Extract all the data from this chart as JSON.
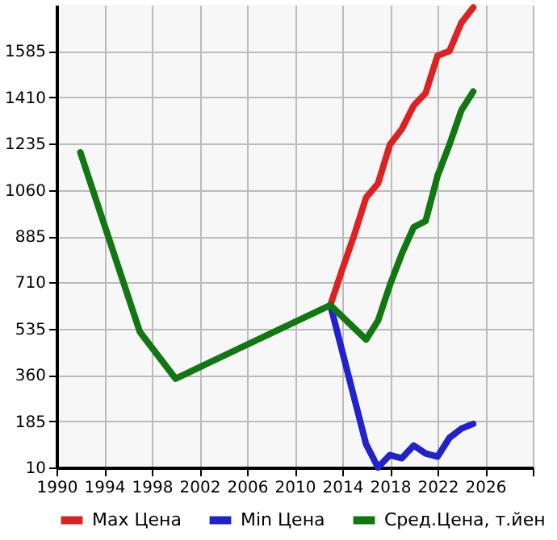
{
  "chart_data": {
    "type": "line",
    "x": [
      1992,
      1997,
      2000,
      2013,
      2016,
      2017,
      2018,
      2019,
      2020,
      2021,
      2022,
      2023,
      2024,
      2025
    ],
    "series": [
      {
        "name": "Max Цена",
        "color": "#dd2222",
        "x": [
          2013,
          2014,
          2015,
          2016,
          2017,
          2018,
          2019,
          2020,
          2021,
          2022,
          2023,
          2024,
          2025
        ],
        "values": [
          624,
          759,
          889,
          1031,
          1084,
          1231,
          1290,
          1379,
          1426,
          1568,
          1585,
          1692,
          1750
        ]
      },
      {
        "name": "Min Цена",
        "color": "#2222cc",
        "x": [
          2013,
          2016,
          2017,
          2018,
          2019,
          2020,
          2021,
          2022,
          2023,
          2024,
          2025
        ],
        "values": [
          624,
          98,
          10,
          57,
          45,
          93,
          63,
          51,
          122,
          157,
          175
        ]
      },
      {
        "name": "Сред.Цена, т.йен",
        "color": "#117711",
        "values": [
          1202,
          523,
          346,
          624,
          494,
          565,
          700,
          818,
          919,
          942,
          1113,
          1231,
          1361,
          1432
        ]
      }
    ],
    "xlim": [
      1990,
      2030
    ],
    "xticks": [
      1990,
      1994,
      1998,
      2002,
      2006,
      2010,
      2014,
      2018,
      2022,
      2026,
      {
        "value": 2030,
        "label": null
      }
    ],
    "ylim": [
      10,
      1760
    ],
    "yticks": [
      10,
      185,
      360,
      535,
      710,
      885,
      1060,
      1235,
      1410,
      1585
    ],
    "grid": true,
    "legend": "bottom",
    "marker": "none",
    "line_style": "solid"
  }
}
